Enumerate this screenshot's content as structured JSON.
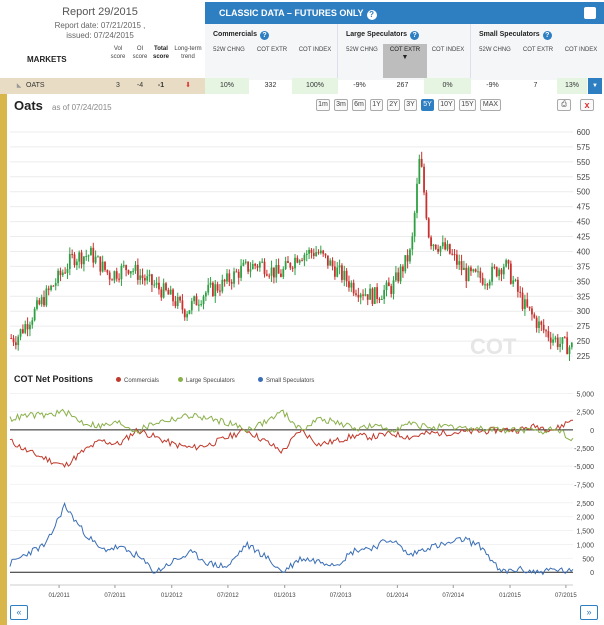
{
  "header": {
    "report_title": "Report 29/2015",
    "report_date": "Report date: 07/21/2015 ,",
    "issued": "issued: 07/24/2015",
    "markets_label": "MARKETS",
    "columns": {
      "vol": "Vol score",
      "oi": "OI score",
      "total": "Total score",
      "trend": "Long-term trend"
    }
  },
  "panel": {
    "title": "CLASSIC DATA – FUTURES ONLY",
    "groups": [
      {
        "name": "Commercials",
        "subs": [
          "52W CHNG",
          "COT EXTR",
          "COT INDEX"
        ]
      },
      {
        "name": "Large Speculators",
        "subs": [
          "52W CHNG",
          "COT EXTR",
          "COT INDEX"
        ]
      },
      {
        "name": "Small Speculators",
        "subs": [
          "52W CHNG",
          "COT EXTR",
          "COT INDEX"
        ]
      }
    ]
  },
  "market_row": {
    "name": "OATS",
    "vol": "3",
    "oi": "-4",
    "total": "-1",
    "comm_chng": "10%",
    "comm_extr": "332",
    "comm_index": "100%",
    "large_chng": "-9%",
    "large_extr": "267",
    "large_index": "0%",
    "small_chng": "-9%",
    "small_extr": "7",
    "small_index": "13%"
  },
  "chart_header": {
    "title": "Oats",
    "as_of": "as of 07/24/2015",
    "ranges": [
      "1m",
      "3m",
      "6m",
      "1Y",
      "2Y",
      "3Y",
      "5Y",
      "10Y",
      "15Y",
      "MAX"
    ],
    "selected_range": "5Y"
  },
  "cot_header": {
    "title": "COT Net Positions",
    "legend": [
      {
        "name": "Commercials",
        "color": "#c0392b"
      },
      {
        "name": "Large Speculators",
        "color": "#8ab04a"
      },
      {
        "name": "Small Speculators",
        "color": "#3a6eb5"
      }
    ]
  },
  "nav": {
    "prev": "«",
    "next": "»"
  },
  "chart_data": [
    {
      "type": "candlestick",
      "title": "Oats",
      "xlabel": "",
      "ylabel": "",
      "y_ticks": [
        225,
        250,
        275,
        300,
        325,
        350,
        375,
        400,
        425,
        450,
        475,
        500,
        525,
        550,
        575,
        600
      ],
      "ylim": [
        225,
        610
      ],
      "x_ticks": [
        "01/2011",
        "07/2011",
        "01/2012",
        "07/2012",
        "01/2013",
        "07/2013",
        "01/2014",
        "07/2014",
        "01/2015",
        "07/2015"
      ],
      "xlim": [
        "2010-07-26",
        "2015-07-24"
      ],
      "x": [
        "2010-08",
        "2010-10",
        "2010-12",
        "2011-02",
        "2011-04",
        "2011-06",
        "2011-08",
        "2011-10",
        "2011-12",
        "2012-02",
        "2012-04",
        "2012-06",
        "2012-08",
        "2012-10",
        "2012-12",
        "2013-02",
        "2013-04",
        "2013-06",
        "2013-08",
        "2013-10",
        "2013-12",
        "2014-02",
        "2014-03",
        "2014-04",
        "2014-06",
        "2014-08",
        "2014-10",
        "2014-12",
        "2015-02",
        "2015-04",
        "2015-06",
        "2015-07"
      ],
      "values": [
        255,
        300,
        345,
        390,
        395,
        360,
        375,
        350,
        330,
        300,
        330,
        345,
        370,
        380,
        360,
        395,
        400,
        370,
        340,
        325,
        340,
        400,
        560,
        420,
        400,
        360,
        355,
        380,
        310,
        270,
        245,
        240
      ]
    },
    {
      "type": "line",
      "title": "COT Net Positions",
      "y_ticks": [
        -7500,
        -5000,
        -2500,
        0,
        2500,
        5000
      ],
      "ylim": [
        -8000,
        5200
      ],
      "series": [
        {
          "name": "Commercials",
          "values": [
            -1500,
            -3000,
            -4000,
            -5000,
            -3000,
            -1500,
            -2000,
            0,
            -1000,
            -2000,
            -2500,
            -2000,
            -1000,
            0,
            -1500,
            -3000,
            0,
            -2000,
            -1500,
            -800,
            -1000,
            -500,
            -1000,
            -500,
            -400,
            -300,
            -200,
            0,
            0,
            500,
            0,
            1500
          ]
        },
        {
          "name": "Large Speculators",
          "values": [
            1500,
            2000,
            2000,
            2500,
            1000,
            500,
            1000,
            -200,
            1000,
            1500,
            2000,
            1500,
            1000,
            0,
            1000,
            2500,
            0,
            1500,
            1000,
            200,
            500,
            0,
            800,
            400,
            300,
            200,
            100,
            0,
            0,
            -300,
            200,
            -1200
          ]
        }
      ]
    },
    {
      "type": "line",
      "y_ticks": [
        0,
        500,
        1000,
        1500,
        2000,
        2500
      ],
      "ylim": [
        -100,
        2600
      ],
      "series": [
        {
          "name": "Small Speculators",
          "values": [
            300,
            700,
            1000,
            2400,
            1500,
            800,
            900,
            600,
            0,
            400,
            700,
            300,
            200,
            1000,
            600,
            0,
            500,
            400,
            300,
            800,
            900,
            1200,
            600,
            900,
            1000,
            1200,
            900,
            0,
            100,
            0,
            100,
            0
          ]
        }
      ]
    }
  ]
}
